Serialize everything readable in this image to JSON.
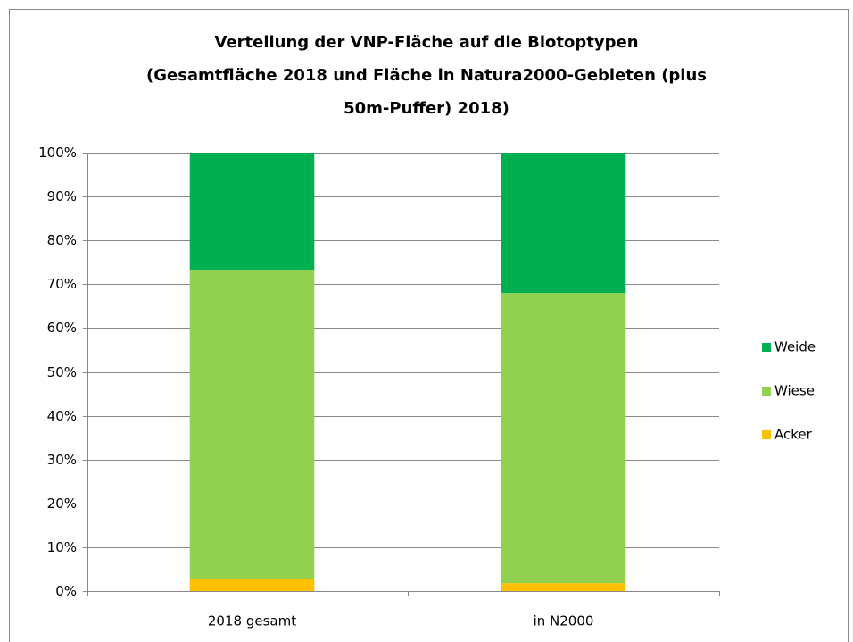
{
  "chart_data": {
    "type": "stacked_bar",
    "title": [
      "Verteilung der VNP-Fläche auf die Biotoptypen",
      "(Gesamtfläche 2018  und Fläche in Natura2000-Gebieten (plus",
      "50m-Puffer) 2018)"
    ],
    "categories": [
      "2018 gesamt",
      "in N2000"
    ],
    "series": [
      {
        "name": "Acker",
        "color": "#ffc000",
        "values": [
          2.8,
          1.8
        ]
      },
      {
        "name": "Wiese",
        "color": "#92d050",
        "values": [
          70.5,
          66.2
        ]
      },
      {
        "name": "Weide",
        "color": "#00b050",
        "values": [
          26.7,
          32.0
        ]
      }
    ],
    "ylim": [
      0,
      100
    ],
    "yticks": [
      {
        "value": 0,
        "label": "0%"
      },
      {
        "value": 10,
        "label": "10%"
      },
      {
        "value": 20,
        "label": "20%"
      },
      {
        "value": 30,
        "label": "30%"
      },
      {
        "value": 40,
        "label": "40%"
      },
      {
        "value": 50,
        "label": "50%"
      },
      {
        "value": 60,
        "label": "60%"
      },
      {
        "value": 70,
        "label": "70%"
      },
      {
        "value": 80,
        "label": "80%"
      },
      {
        "value": 90,
        "label": "90%"
      },
      {
        "value": 100,
        "label": "100%"
      }
    ],
    "grid": true,
    "legend": "right"
  }
}
